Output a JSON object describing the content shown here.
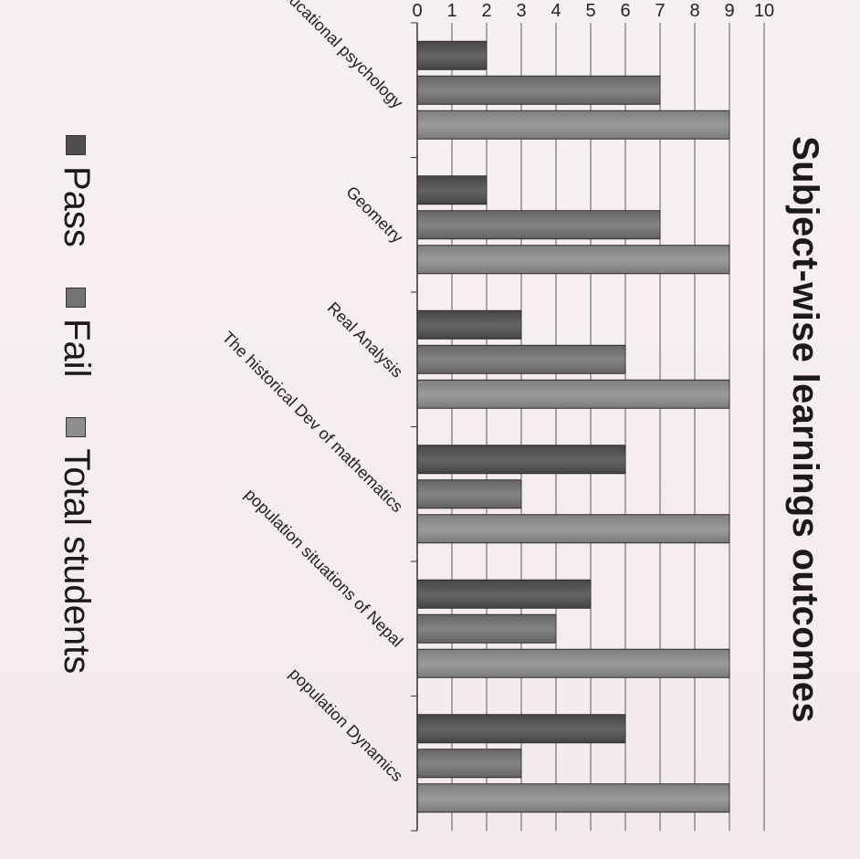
{
  "chart_data": {
    "type": "bar",
    "title": "Subject-wise learnings outcomes",
    "categories": [
      "Educational psychology",
      "Geometry",
      "Real Analysis",
      "The historical Dev of mathematics",
      "population situations of Nepal",
      "population Dynamics"
    ],
    "series": [
      {
        "name": "Pass",
        "values": [
          2,
          2,
          3,
          6,
          5,
          6
        ],
        "color": "#4f4f4f"
      },
      {
        "name": "Fail",
        "values": [
          7,
          7,
          6,
          3,
          4,
          3
        ],
        "color": "#737373"
      },
      {
        "name": "Total students",
        "values": [
          9,
          9,
          9,
          9,
          9,
          9
        ],
        "color": "#8e8e8e"
      }
    ],
    "y_ticks": [
      "0",
      "1",
      "2",
      "3",
      "4",
      "5",
      "6",
      "7",
      "8",
      "9",
      "10"
    ],
    "ylim": [
      0,
      10
    ],
    "grid": true,
    "legend_position": "bottom",
    "orientation": "rotated 90 degrees clockwise on the page"
  }
}
